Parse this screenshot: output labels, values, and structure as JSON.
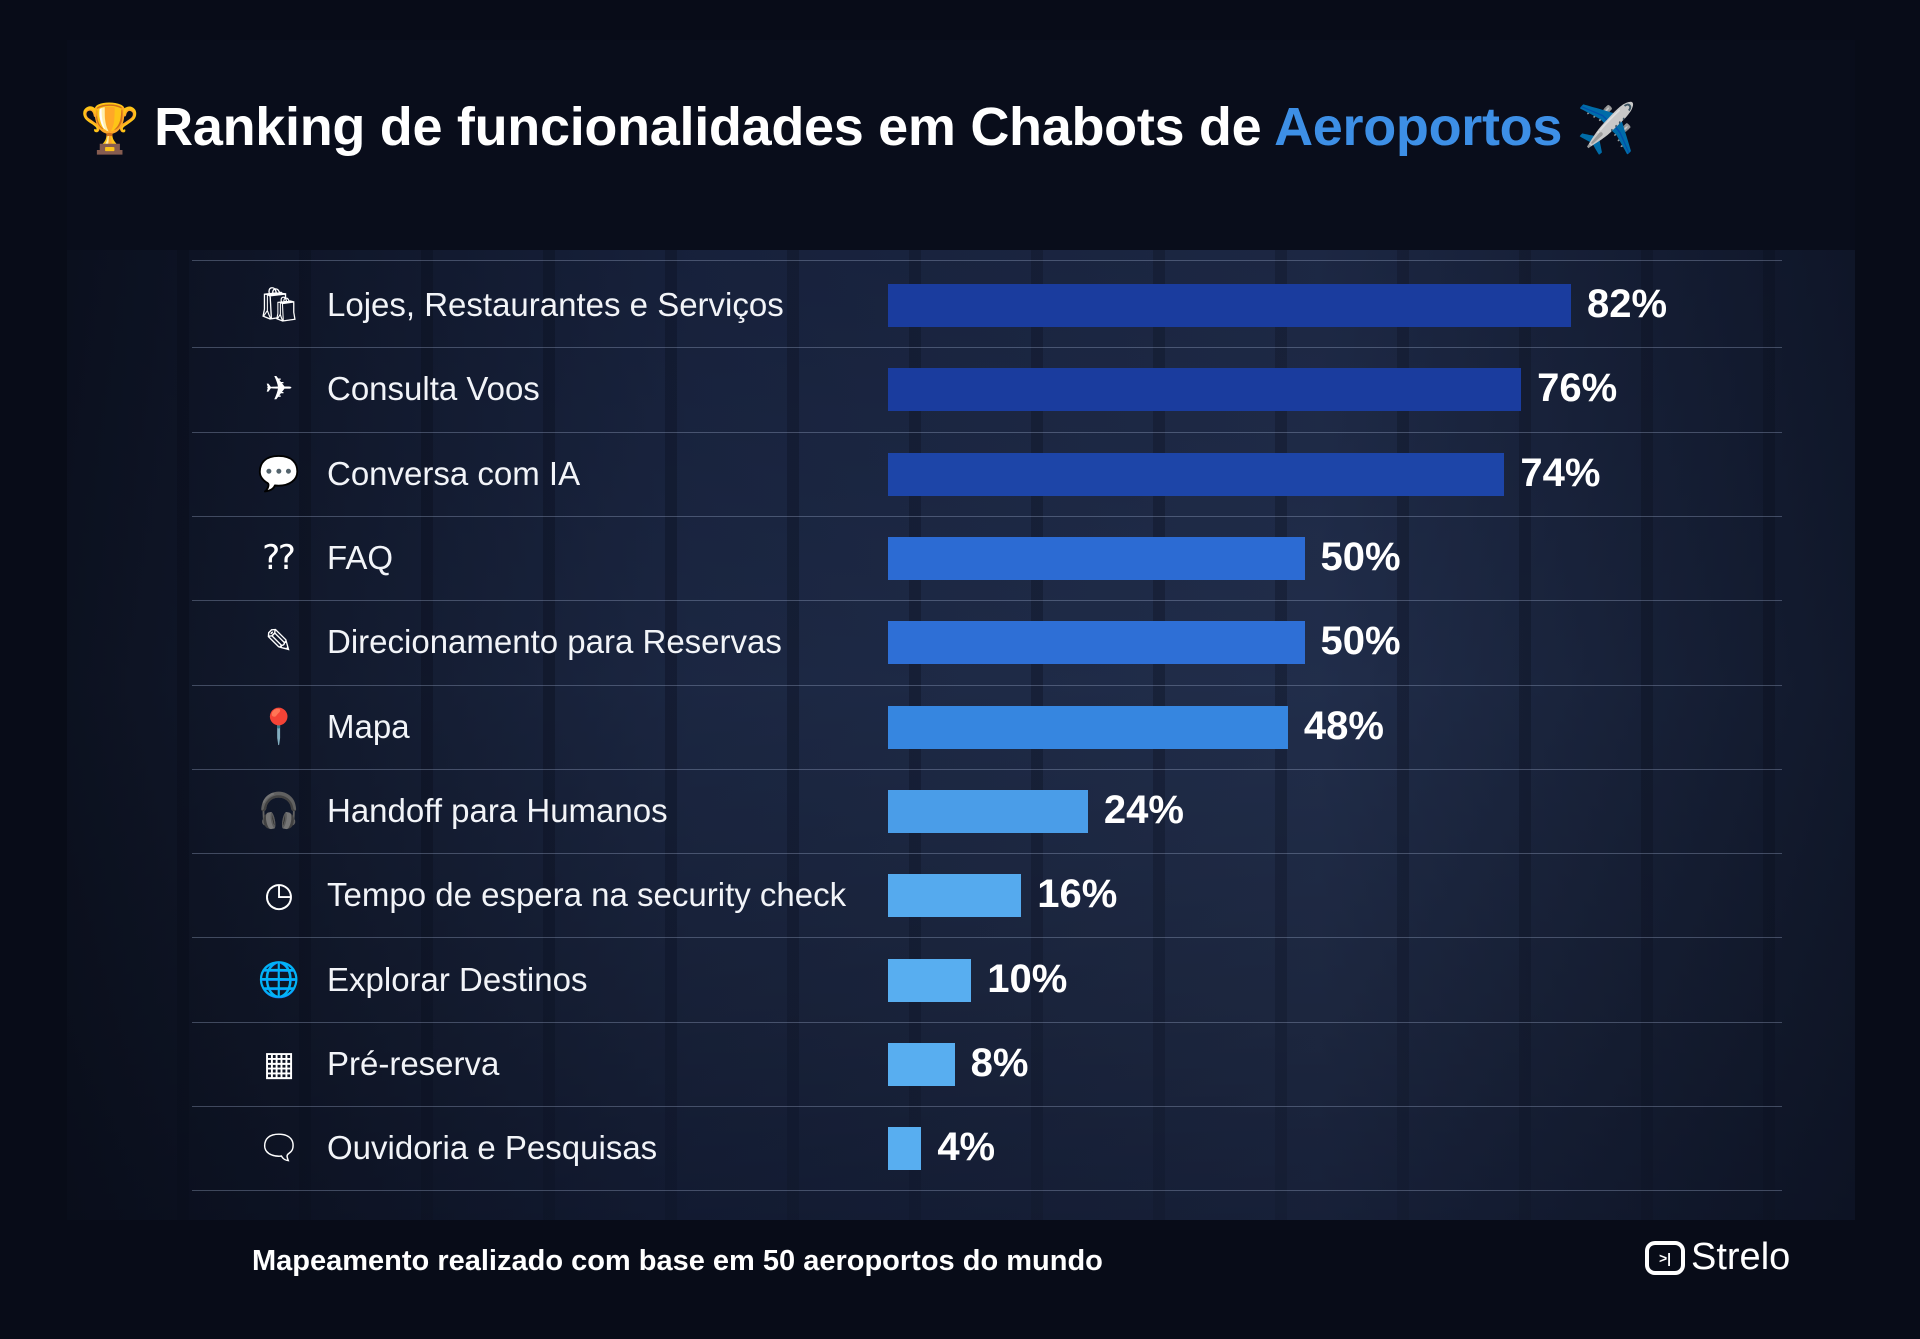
{
  "header": {
    "trophy_icon": "trophy-icon",
    "title_main": "Ranking de funcionalidades em Chabots de",
    "title_accent": "Aeroportos",
    "plane_icon": "airplane-icon",
    "accent_color": "#3d8fe6"
  },
  "chart_data": {
    "type": "bar",
    "orientation": "horizontal",
    "title": "Ranking de funcionalidades em Chabots de Aeroportos",
    "categories": [
      "Lojes, Restaurantes e Serviços",
      "Consulta Voos",
      "Conversa com IA",
      "FAQ",
      "Direcionamento para Reservas",
      "Mapa",
      "Handoff para Humanos",
      "Tempo de espera na security check",
      "Explorar Destinos",
      "Pré-reserva",
      "Ouvidoria e Pesquisas"
    ],
    "values": [
      82,
      76,
      74,
      50,
      50,
      48,
      24,
      16,
      10,
      8,
      4
    ],
    "labels": [
      "82%",
      "76%",
      "74%",
      "50%",
      "50%",
      "48%",
      "24%",
      "16%",
      "10%",
      "8%",
      "4%"
    ],
    "icons": [
      "shopping-bag-icon",
      "airplane-icon",
      "chat-bubble-icon",
      "faq-icon",
      "edit-booking-icon",
      "map-pin-icon",
      "headset-icon",
      "clock-icon",
      "globe-icon",
      "calendar-icon",
      "feedback-icon"
    ],
    "colors": [
      "#1a3c9e",
      "#1a3c9e",
      "#1d45a8",
      "#2c6bd3",
      "#2e6fd6",
      "#3686e0",
      "#4a9de8",
      "#55aaee",
      "#58aef0",
      "#58aef0",
      "#58aef0"
    ],
    "unit": "%",
    "grid": false,
    "legend": "none"
  },
  "footer": {
    "note": "Mapeamento realizado com base em 50 aeroportos do mundo",
    "brand": "Strelo"
  }
}
